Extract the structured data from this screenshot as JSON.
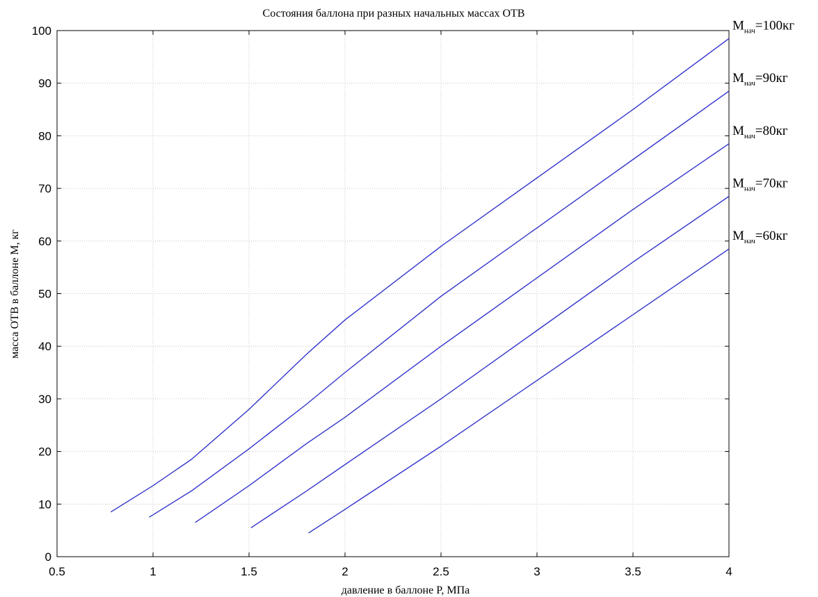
{
  "chart_data": {
    "type": "line",
    "title": "Состояния баллона при разных начальных массах ОТВ",
    "xlabel": "давление в баллоне  P, МПа",
    "ylabel": "масса ОТВ в баллоне  М, кг",
    "xlim": [
      0.5,
      4
    ],
    "ylim": [
      0,
      100
    ],
    "xticks": [
      0.5,
      1,
      1.5,
      2,
      2.5,
      3,
      3.5,
      4
    ],
    "xtick_labels": [
      "0.5",
      "1",
      "1.5",
      "2",
      "2.5",
      "3",
      "3.5",
      "4"
    ],
    "yticks": [
      0,
      10,
      20,
      30,
      40,
      50,
      60,
      70,
      80,
      90,
      100
    ],
    "ytick_labels": [
      "0",
      "10",
      "20",
      "30",
      "40",
      "50",
      "60",
      "70",
      "80",
      "90",
      "100"
    ],
    "grid": true,
    "line_color": "#3333cc",
    "series": [
      {
        "label": {
          "main": "М",
          "sub": "нач",
          "suffix": "=100кг"
        },
        "x": [
          0.78,
          1.0,
          1.2,
          1.5,
          1.8,
          2.0,
          2.5,
          3.0,
          3.5,
          4.0
        ],
        "y": [
          8.5,
          13.5,
          18.5,
          28.0,
          38.5,
          45.0,
          59.0,
          72.0,
          85.0,
          98.5
        ]
      },
      {
        "label": {
          "main": "М",
          "sub": "нач",
          "suffix": "=90кг"
        },
        "x": [
          0.98,
          1.2,
          1.5,
          1.8,
          2.0,
          2.5,
          3.0,
          3.5,
          4.0
        ],
        "y": [
          7.5,
          12.5,
          20.5,
          29.0,
          35.0,
          49.5,
          62.5,
          75.5,
          88.5
        ]
      },
      {
        "label": {
          "main": "М",
          "sub": "нач",
          "suffix": "=80кг"
        },
        "x": [
          1.22,
          1.5,
          1.8,
          2.0,
          2.5,
          3.0,
          3.5,
          4.0
        ],
        "y": [
          6.5,
          13.5,
          21.5,
          26.5,
          40.0,
          53.0,
          66.0,
          78.5
        ]
      },
      {
        "label": {
          "main": "М",
          "sub": "нач",
          "suffix": "=70кг"
        },
        "x": [
          1.51,
          1.8,
          2.0,
          2.5,
          3.0,
          3.5,
          4.0
        ],
        "y": [
          5.5,
          12.5,
          17.5,
          30.0,
          43.0,
          56.0,
          68.5
        ]
      },
      {
        "label": {
          "main": "М",
          "sub": "нач",
          "suffix": "=60кг"
        },
        "x": [
          1.81,
          2.0,
          2.5,
          3.0,
          3.5,
          4.0
        ],
        "y": [
          4.5,
          9.0,
          21.0,
          33.5,
          46.0,
          58.5
        ]
      }
    ]
  }
}
